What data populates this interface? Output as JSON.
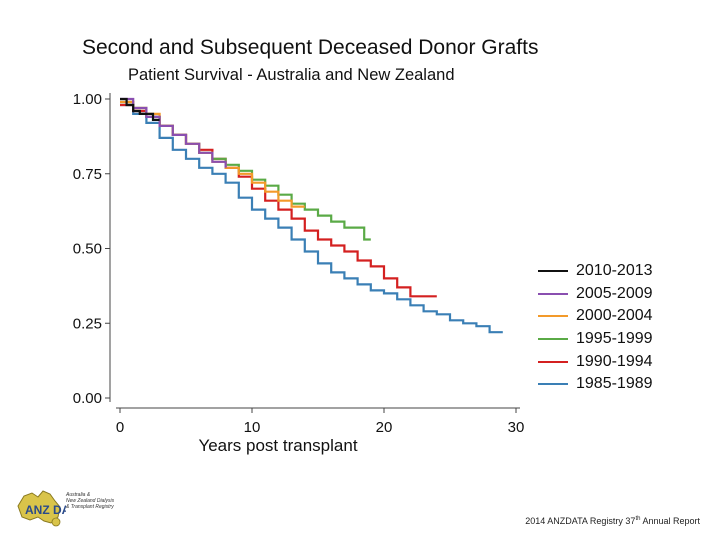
{
  "chart_data": {
    "type": "line",
    "title": "Second and Subsequent Deceased Donor Grafts",
    "subtitle": "Patient Survival - Australia and New Zealand",
    "xlabel": "Years post transplant",
    "ylabel": "",
    "xlim": [
      0,
      30
    ],
    "ylim": [
      0,
      1
    ],
    "x_ticks": [
      "0",
      "10",
      "20",
      "30"
    ],
    "y_ticks": [
      "0.00",
      "0.25",
      "0.50",
      "0.75",
      "1.00"
    ],
    "legend_position": "right",
    "series": [
      {
        "name": "1985-1989",
        "color": "#3a7fb5",
        "x": [
          0,
          1,
          2,
          3,
          4,
          5,
          6,
          7,
          8,
          9,
          10,
          11,
          12,
          13,
          14,
          15,
          16,
          17,
          18,
          19,
          20,
          21,
          22,
          23,
          24,
          25,
          26,
          27,
          28,
          29
        ],
        "y": [
          0.98,
          0.95,
          0.92,
          0.87,
          0.83,
          0.8,
          0.77,
          0.75,
          0.72,
          0.67,
          0.63,
          0.6,
          0.57,
          0.53,
          0.49,
          0.45,
          0.42,
          0.4,
          0.38,
          0.36,
          0.35,
          0.33,
          0.31,
          0.29,
          0.28,
          0.26,
          0.25,
          0.24,
          0.22,
          0.22
        ]
      },
      {
        "name": "1990-1994",
        "color": "#d42020",
        "x": [
          0,
          1,
          2,
          3,
          4,
          5,
          6,
          7,
          8,
          9,
          10,
          11,
          12,
          13,
          14,
          15,
          16,
          17,
          18,
          19,
          20,
          21,
          22,
          23,
          24
        ],
        "y": [
          0.98,
          0.96,
          0.94,
          0.91,
          0.88,
          0.85,
          0.83,
          0.8,
          0.77,
          0.74,
          0.7,
          0.66,
          0.63,
          0.6,
          0.56,
          0.53,
          0.51,
          0.49,
          0.46,
          0.44,
          0.4,
          0.37,
          0.34,
          0.34,
          0.34
        ]
      },
      {
        "name": "1995-1999",
        "color": "#5aaa46",
        "x": [
          0,
          1,
          2,
          3,
          4,
          5,
          6,
          7,
          8,
          9,
          10,
          11,
          12,
          13,
          14,
          15,
          16,
          17,
          18,
          18.5,
          19
        ],
        "y": [
          0.99,
          0.97,
          0.94,
          0.91,
          0.88,
          0.85,
          0.82,
          0.8,
          0.78,
          0.76,
          0.73,
          0.71,
          0.68,
          0.65,
          0.63,
          0.61,
          0.59,
          0.57,
          0.57,
          0.53,
          0.53
        ]
      },
      {
        "name": "2000-2004",
        "color": "#f39a2a",
        "x": [
          0,
          1,
          2,
          3,
          4,
          5,
          6,
          7,
          8,
          9,
          10,
          11,
          12,
          13,
          14
        ],
        "y": [
          0.99,
          0.97,
          0.95,
          0.91,
          0.88,
          0.85,
          0.82,
          0.79,
          0.77,
          0.75,
          0.72,
          0.69,
          0.66,
          0.64,
          0.64
        ]
      },
      {
        "name": "2005-2009",
        "color": "#8a4fb0",
        "x": [
          0,
          1,
          2,
          3,
          4,
          5,
          6,
          7,
          8
        ],
        "y": [
          1.0,
          0.97,
          0.94,
          0.91,
          0.88,
          0.85,
          0.82,
          0.79,
          0.77
        ]
      },
      {
        "name": "2010-2013",
        "color": "#111111",
        "x": [
          0,
          0.5,
          1,
          1.5,
          2,
          2.5,
          3
        ],
        "y": [
          1.0,
          0.98,
          0.96,
          0.95,
          0.95,
          0.93,
          0.93
        ]
      }
    ],
    "legend_order": [
      "2010-2013",
      "2005-2009",
      "2000-2004",
      "1995-1999",
      "1990-1994",
      "1985-1989"
    ]
  },
  "footer": {
    "text": "2014 ANZDATA Registry 37",
    "sup": "th",
    "suffix": " Annual Report"
  },
  "logo": {
    "badge": "ANZ DATA",
    "lines": [
      "Australia &",
      "New Zealand Dialysis",
      "& Transplant Registry"
    ]
  }
}
